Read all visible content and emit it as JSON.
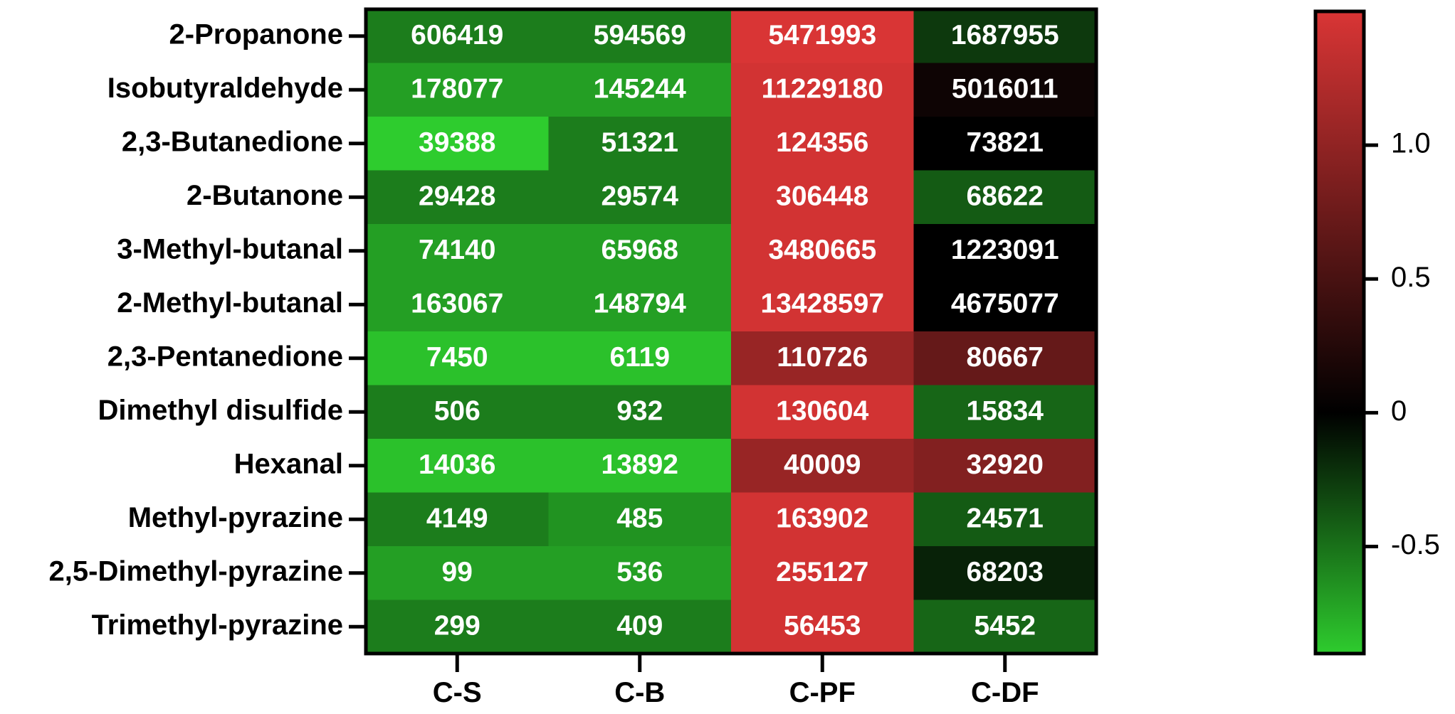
{
  "chart_data": {
    "type": "heatmap",
    "columns": [
      "C-S",
      "C-B",
      "C-PF",
      "C-DF"
    ],
    "rows": [
      "2-Propanone",
      "Isobutyraldehyde",
      "2,3-Butanedione",
      "2-Butanone",
      "3-Methyl-butanal",
      "2-Methyl-butanal",
      "2,3-Pentanedione",
      "Dimethyl disulfide",
      "Hexanal",
      "Methyl-pyrazine",
      "2,5-Dimethyl-pyrazine",
      "Trimethyl-pyrazine"
    ],
    "cell_labels": [
      [
        "606419",
        "594569",
        "5471993",
        "1687955"
      ],
      [
        "178077",
        "145244",
        "11229180",
        "5016011"
      ],
      [
        "39388",
        "51321",
        "124356",
        "73821"
      ],
      [
        "29428",
        "29574",
        "306448",
        "68622"
      ],
      [
        "74140",
        "65968",
        "3480665",
        "1223091"
      ],
      [
        "163067",
        "148794",
        "13428597",
        "4675077"
      ],
      [
        "7450",
        "6119",
        "110726",
        "80667"
      ],
      [
        "506",
        "932",
        "130604",
        "15834"
      ],
      [
        "14036",
        "13892",
        "40009",
        "32920"
      ],
      [
        "4149",
        "485",
        "163902",
        "24571"
      ],
      [
        "99",
        "536",
        "255127",
        "68203"
      ],
      [
        "299",
        "409",
        "56453",
        "5452"
      ]
    ],
    "color_values": [
      [
        -0.55,
        -0.55,
        1.5,
        -0.25
      ],
      [
        -0.7,
        -0.7,
        1.45,
        0.1
      ],
      [
        -0.9,
        -0.55,
        1.45,
        0.0
      ],
      [
        -0.55,
        -0.55,
        1.45,
        -0.4
      ],
      [
        -0.7,
        -0.7,
        1.45,
        0.0
      ],
      [
        -0.7,
        -0.7,
        1.45,
        0.0
      ],
      [
        -0.85,
        -0.85,
        1.05,
        0.7
      ],
      [
        -0.55,
        -0.55,
        1.45,
        -0.45
      ],
      [
        -0.85,
        -0.85,
        1.05,
        0.9
      ],
      [
        -0.55,
        -0.65,
        1.45,
        -0.4
      ],
      [
        -0.7,
        -0.7,
        1.45,
        -0.15
      ],
      [
        -0.55,
        -0.55,
        1.45,
        -0.45
      ]
    ],
    "colorbar": {
      "min": -0.9,
      "max": 1.5,
      "ticks": [
        -0.5,
        0,
        0.5,
        1.0
      ],
      "tick_labels": [
        "-0.5",
        "0",
        "0.5",
        "1.0"
      ],
      "low_color": "#2ecc2e",
      "mid_color": "#000000",
      "high_color": "#d93535"
    },
    "title": "",
    "xlabel": "",
    "ylabel": ""
  }
}
